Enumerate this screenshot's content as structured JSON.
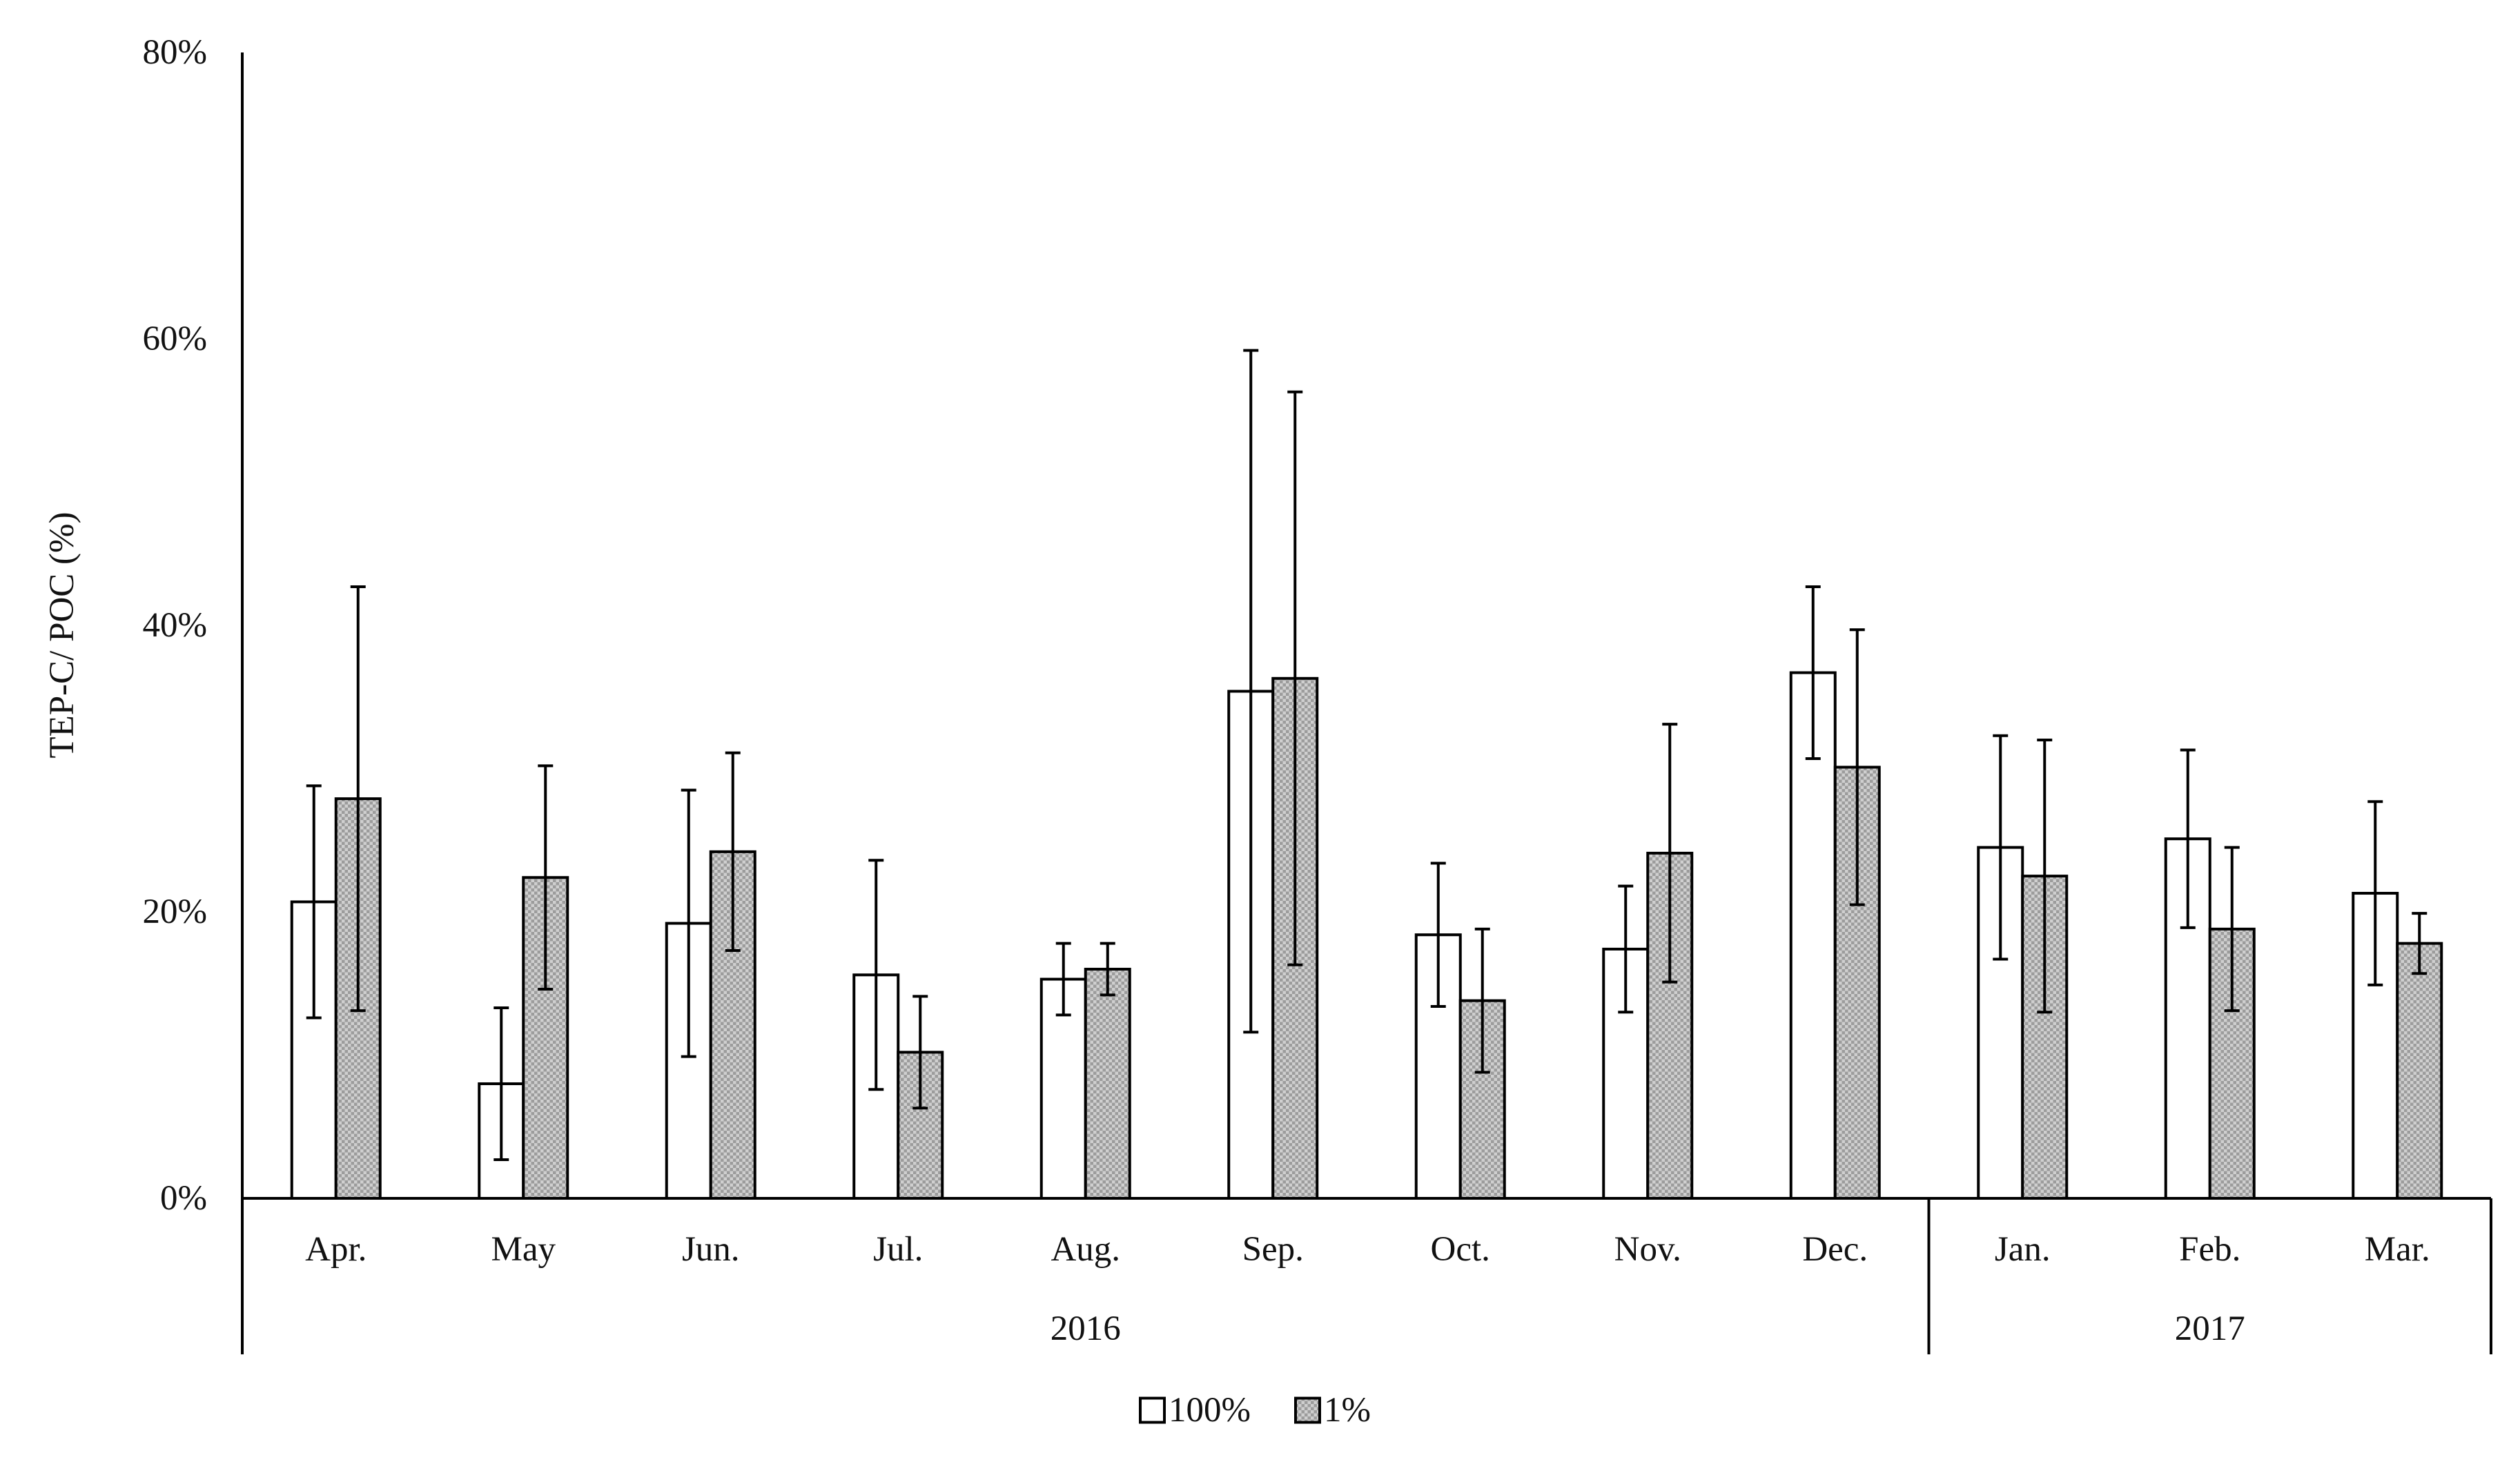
{
  "chart_data": {
    "type": "bar",
    "ylabel": "TEP-C/ POC (%)",
    "ylim": [
      0,
      80
    ],
    "y_ticks": [
      "0%",
      "20%",
      "40%",
      "60%",
      "80%"
    ],
    "categories": [
      "Apr.",
      "May",
      "Jun.",
      "Jul.",
      "Aug.",
      "Sep.",
      "Oct.",
      "Nov.",
      "Dec.",
      "Jan.",
      "Feb.",
      "Mar."
    ],
    "groups": [
      {
        "label": "2016",
        "from": 0,
        "to": 8
      },
      {
        "label": "2017",
        "from": 9,
        "to": 11
      }
    ],
    "series": [
      {
        "name": "100%",
        "fill": "white",
        "values": [
          20.7,
          8.0,
          19.2,
          15.6,
          15.3,
          35.4,
          18.4,
          17.4,
          36.7,
          24.5,
          25.1,
          21.3
        ],
        "errors": [
          8.1,
          5.3,
          9.3,
          8.0,
          2.5,
          23.8,
          5.0,
          4.4,
          6.0,
          7.8,
          6.2,
          6.4
        ]
      },
      {
        "name": "1%",
        "fill": "pattern",
        "values": [
          27.9,
          22.4,
          24.2,
          10.2,
          16.0,
          36.3,
          13.8,
          24.1,
          30.1,
          22.5,
          18.8,
          17.8
        ],
        "errors": [
          14.8,
          7.8,
          6.9,
          3.9,
          1.8,
          20.0,
          5.0,
          9.0,
          9.6,
          9.5,
          5.7,
          2.1
        ]
      }
    ],
    "legend": "bottom-center",
    "grid": false
  }
}
